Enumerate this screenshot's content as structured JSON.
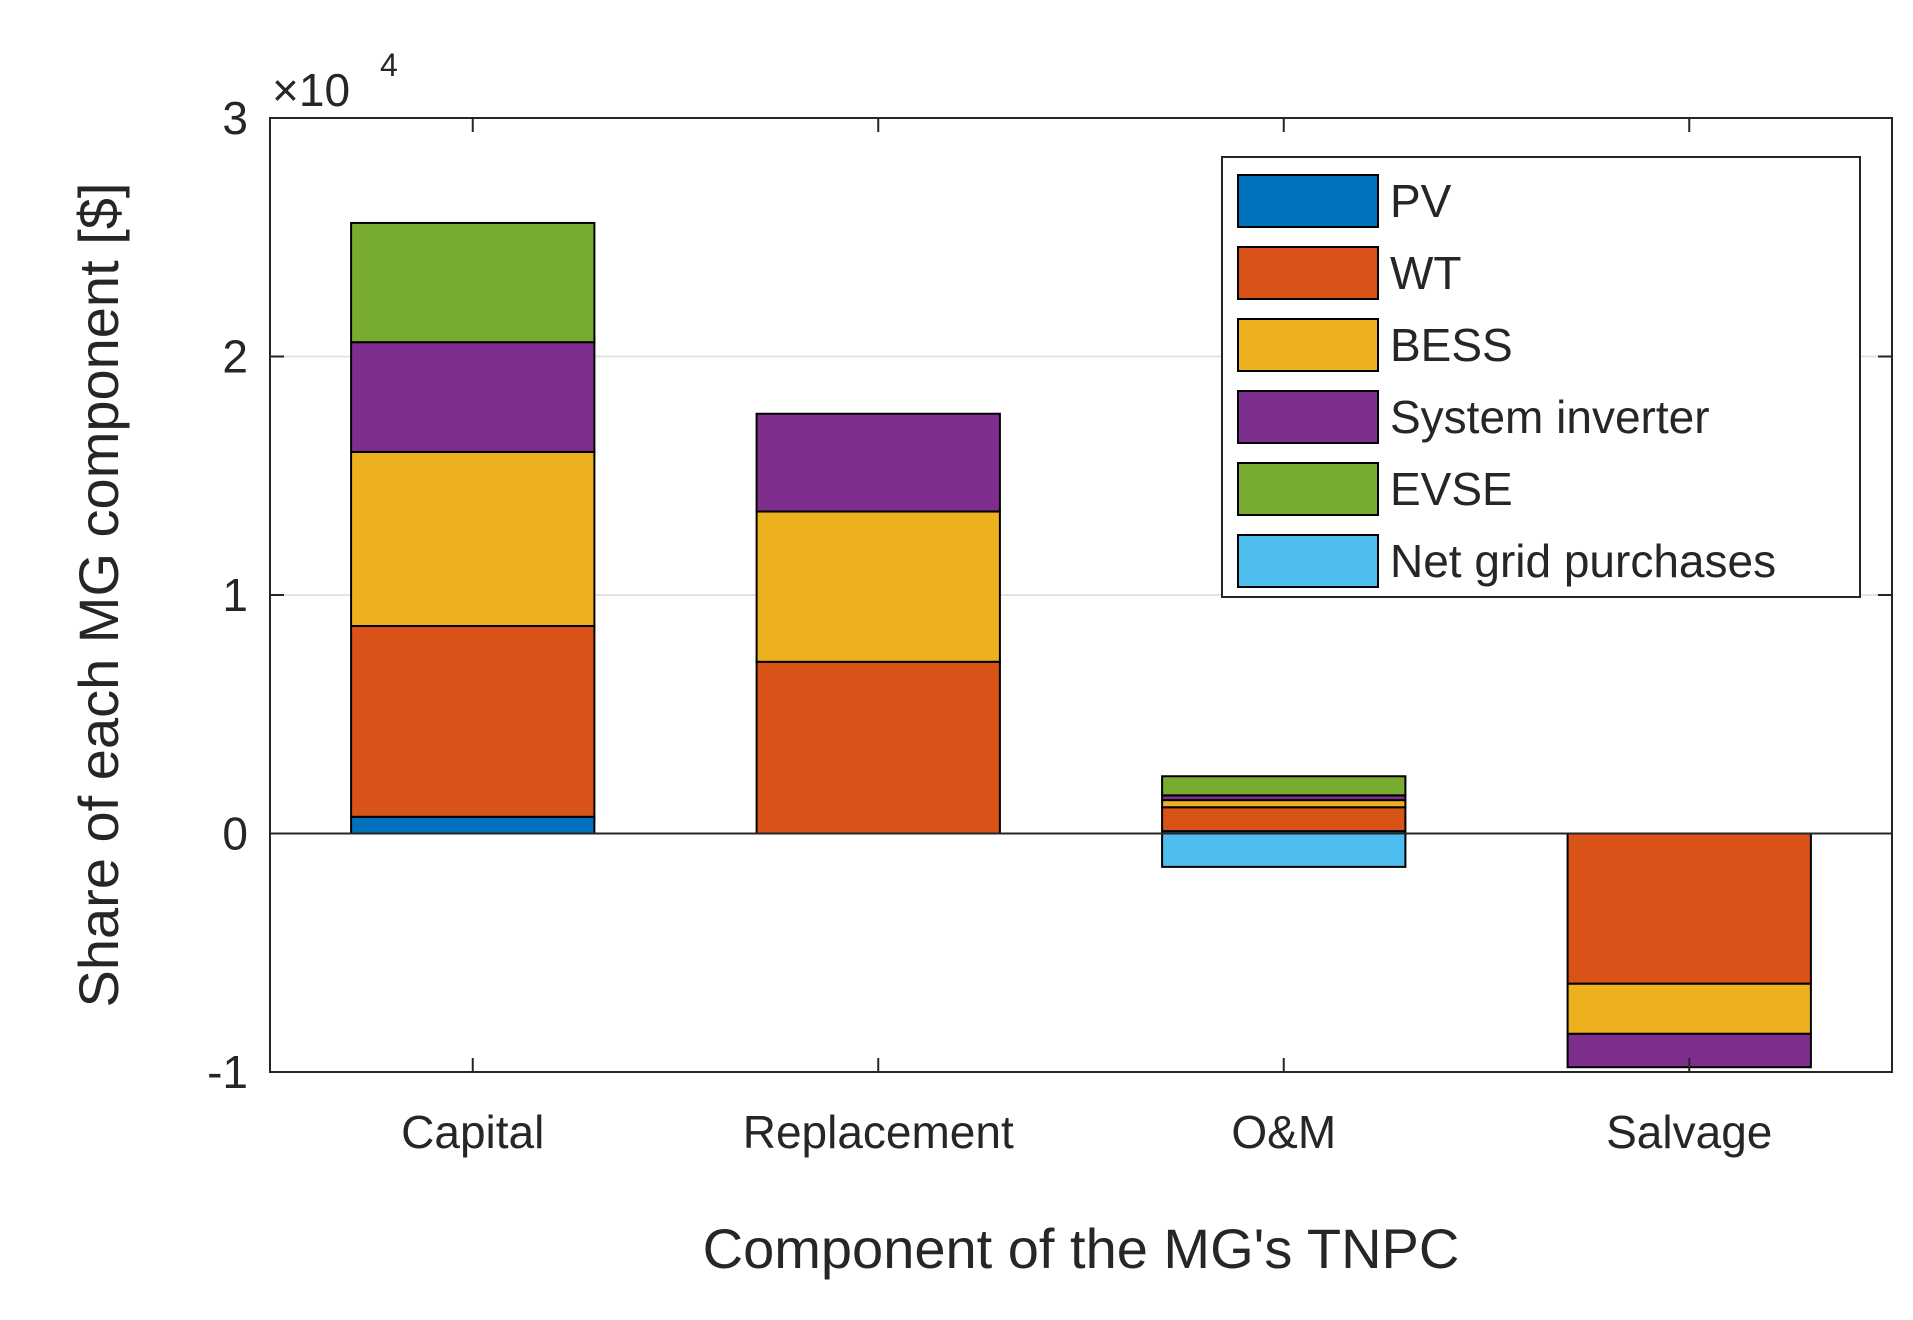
{
  "chart_data": {
    "type": "bar",
    "stacked": true,
    "xlabel": "Component of the MG's TNPC",
    "ylabel": "Share of each MG component [$]",
    "y_exponent_label": "×10",
    "y_exponent_power": "4",
    "ylim": [
      -1,
      3
    ],
    "y_ticks": [
      -1,
      0,
      1,
      2,
      3
    ],
    "y_tick_labels": [
      "-1",
      "0",
      "1",
      "2",
      "3"
    ],
    "y_scale": 10000,
    "grid": "horizontal",
    "legend_position": "top-right",
    "categories": [
      "Capital",
      "Replacement",
      "O&M",
      "Salvage"
    ],
    "series": [
      {
        "name": "PV",
        "color": "#0072BD",
        "values": [
          700,
          0,
          100,
          0
        ]
      },
      {
        "name": "WT",
        "color": "#D95319",
        "values": [
          8000,
          7200,
          1000,
          -6300
        ]
      },
      {
        "name": "BESS",
        "color": "#EDB120",
        "values": [
          7300,
          6300,
          300,
          -2100
        ]
      },
      {
        "name": "System inverter",
        "color": "#7E2F8E",
        "values": [
          4600,
          4100,
          200,
          -1400
        ]
      },
      {
        "name": "EVSE",
        "color": "#77AC30",
        "values": [
          5000,
          0,
          800,
          0
        ]
      },
      {
        "name": "Net grid purchases",
        "color": "#4DBEEE",
        "values": [
          0,
          0,
          -1400,
          0
        ]
      }
    ]
  }
}
